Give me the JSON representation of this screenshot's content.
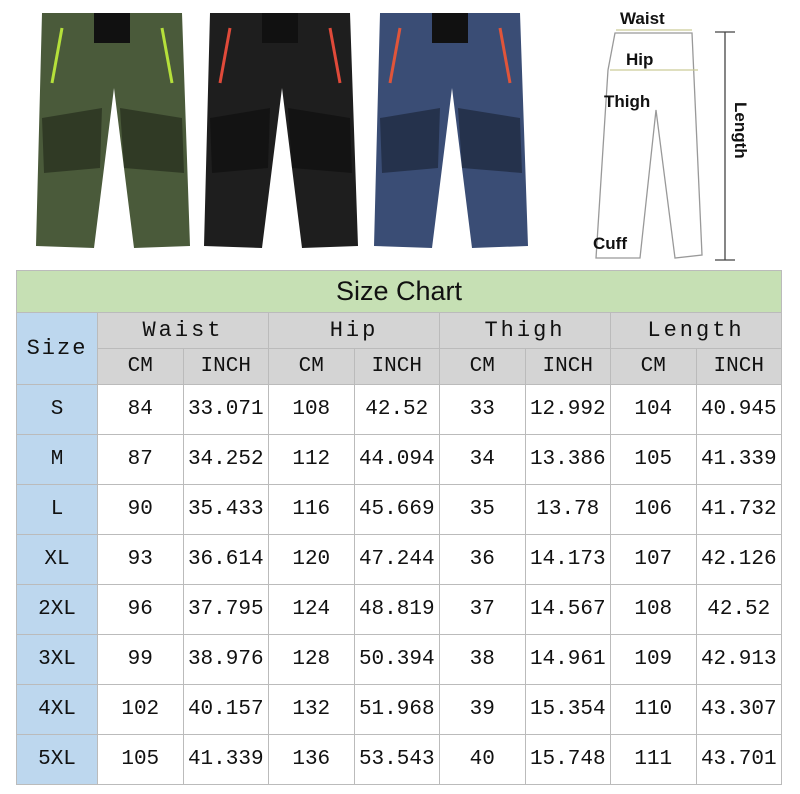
{
  "product_images": [
    {
      "color_name": "army-green",
      "color": "#4a5a3a",
      "accent": "#b5e03a"
    },
    {
      "color_name": "black",
      "color": "#1e1e1e",
      "accent": "#e04a3a"
    },
    {
      "color_name": "navy-blue",
      "color": "#3a4d75",
      "accent": "#e0553a"
    }
  ],
  "diagram": {
    "waist": "Waist",
    "hip": "Hip",
    "thigh": "Thigh",
    "cuff": "Cuff",
    "length": "Length"
  },
  "table": {
    "title": "Size Chart",
    "size_header": "Size",
    "groups": [
      "Waist",
      "Hip",
      "Thigh",
      "Length"
    ],
    "units": [
      "CM",
      "INCH",
      "CM",
      "INCH",
      "CM",
      "INCH",
      "CM",
      "INCH"
    ],
    "rows": [
      [
        "S",
        "84",
        "33.071",
        "108",
        "42.52",
        "33",
        "12.992",
        "104",
        "40.945"
      ],
      [
        "M",
        "87",
        "34.252",
        "112",
        "44.094",
        "34",
        "13.386",
        "105",
        "41.339"
      ],
      [
        "L",
        "90",
        "35.433",
        "116",
        "45.669",
        "35",
        "13.78",
        "106",
        "41.732"
      ],
      [
        "XL",
        "93",
        "36.614",
        "120",
        "47.244",
        "36",
        "14.173",
        "107",
        "42.126"
      ],
      [
        "2XL",
        "96",
        "37.795",
        "124",
        "48.819",
        "37",
        "14.567",
        "108",
        "42.52"
      ],
      [
        "3XL",
        "99",
        "38.976",
        "128",
        "50.394",
        "38",
        "14.961",
        "109",
        "42.913"
      ],
      [
        "4XL",
        "102",
        "40.157",
        "132",
        "51.968",
        "39",
        "15.354",
        "110",
        "43.307"
      ],
      [
        "5XL",
        "105",
        "41.339",
        "136",
        "53.543",
        "40",
        "15.748",
        "111",
        "43.701"
      ]
    ]
  },
  "colors": {
    "title_bg": "#c6e0b4",
    "header_bg": "#d4d4d4",
    "size_bg": "#bdd7ee"
  }
}
